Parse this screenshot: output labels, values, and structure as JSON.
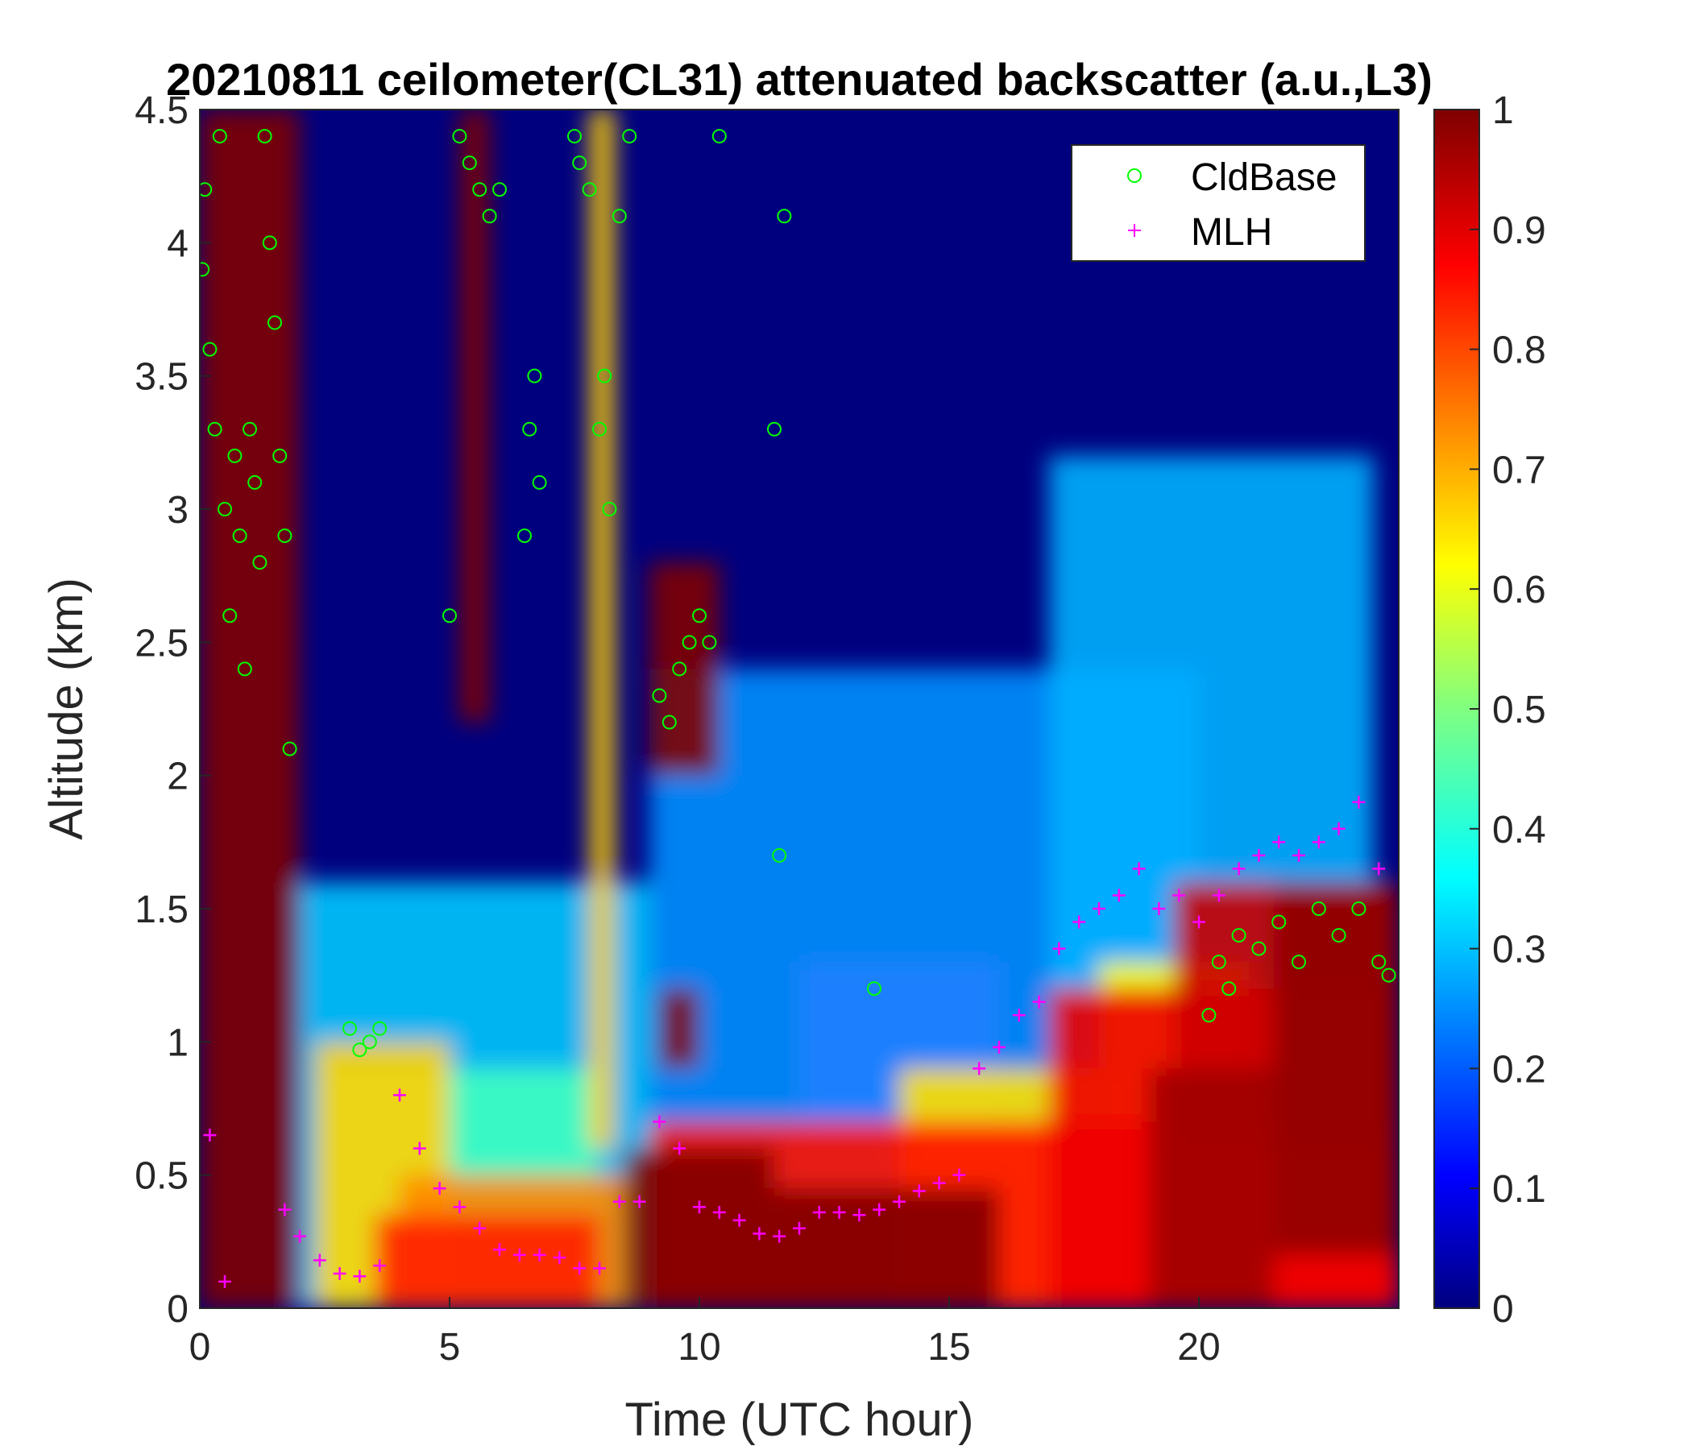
{
  "chart_data": {
    "type": "heatmap",
    "title": "20210811 ceilometer(CL31) attenuated backscatter (a.u.,L3)",
    "xlabel": "Time (UTC hour)",
    "ylabel": "Altitude (km)",
    "xlim": [
      0,
      24
    ],
    "ylim": [
      0,
      4.5
    ],
    "xticks": [
      "0",
      "5",
      "10",
      "15",
      "20"
    ],
    "yticks": [
      "0",
      "0.5",
      "1",
      "1.5",
      "2",
      "2.5",
      "3",
      "3.5",
      "4",
      "4.5"
    ],
    "colorbar": {
      "colormap": "jet",
      "range": [
        0,
        1
      ],
      "ticks": [
        "0",
        "0.1",
        "0.2",
        "0.3",
        "0.4",
        "0.5",
        "0.6",
        "0.7",
        "0.8",
        "0.9",
        "1"
      ]
    },
    "grid": false,
    "legend": {
      "placement": "top-right",
      "entries": [
        {
          "label": "CldBase",
          "marker": "circle",
          "color": "#00ff00"
        },
        {
          "label": "MLH",
          "marker": "plus",
          "color": "#ff00ff"
        }
      ]
    },
    "series": [
      {
        "name": "CldBase",
        "x": [
          0.05,
          0.1,
          0.2,
          0.3,
          0.4,
          0.5,
          0.6,
          0.7,
          0.8,
          0.9,
          1.0,
          1.1,
          1.2,
          1.3,
          1.4,
          1.5,
          1.6,
          1.7,
          1.8,
          3.0,
          3.2,
          3.4,
          3.6,
          5.0,
          5.2,
          5.4,
          5.6,
          5.8,
          6.0,
          6.5,
          6.6,
          6.7,
          6.8,
          7.5,
          7.6,
          7.8,
          8.0,
          8.1,
          8.2,
          8.4,
          8.6,
          9.2,
          9.4,
          9.6,
          9.8,
          10.0,
          10.2,
          10.4,
          11.5,
          11.6,
          11.7,
          13.5,
          20.2,
          20.4,
          20.6,
          20.8,
          21.2,
          21.6,
          22.0,
          22.4,
          22.8,
          23.2,
          23.6,
          23.8
        ],
        "y": [
          3.9,
          4.2,
          3.6,
          3.3,
          4.4,
          3.0,
          2.6,
          3.2,
          2.9,
          2.4,
          3.3,
          3.1,
          2.8,
          4.4,
          4.0,
          3.7,
          3.2,
          2.9,
          2.1,
          1.05,
          0.97,
          1.0,
          1.05,
          2.6,
          4.4,
          4.3,
          4.2,
          4.1,
          4.2,
          2.9,
          3.3,
          3.5,
          3.1,
          4.4,
          4.3,
          4.2,
          3.3,
          3.5,
          3.0,
          4.1,
          4.4,
          2.3,
          2.2,
          2.4,
          2.5,
          2.6,
          2.5,
          4.4,
          3.3,
          1.7,
          4.1,
          1.2,
          1.1,
          1.3,
          1.2,
          1.4,
          1.35,
          1.45,
          1.3,
          1.5,
          1.4,
          1.5,
          1.3,
          1.25
        ]
      },
      {
        "name": "MLH",
        "x": [
          0.2,
          0.5,
          1.7,
          2.0,
          2.4,
          2.8,
          3.2,
          3.6,
          4.0,
          4.4,
          4.8,
          5.2,
          5.6,
          6.0,
          6.4,
          6.8,
          7.2,
          7.6,
          8.0,
          8.4,
          8.8,
          9.2,
          9.6,
          10.0,
          10.4,
          10.8,
          11.2,
          11.6,
          12.0,
          12.4,
          12.8,
          13.2,
          13.6,
          14.0,
          14.4,
          14.8,
          15.2,
          15.6,
          16.0,
          16.4,
          16.8,
          17.2,
          17.6,
          18.0,
          18.4,
          18.8,
          19.2,
          19.6,
          20.0,
          20.4,
          20.8,
          21.2,
          21.6,
          22.0,
          22.4,
          22.8,
          23.2,
          23.6
        ],
        "y": [
          0.65,
          0.1,
          0.37,
          0.27,
          0.18,
          0.13,
          0.12,
          0.16,
          0.8,
          0.6,
          0.45,
          0.38,
          0.3,
          0.22,
          0.2,
          0.2,
          0.19,
          0.15,
          0.15,
          0.4,
          0.4,
          0.7,
          0.6,
          0.38,
          0.36,
          0.33,
          0.28,
          0.27,
          0.3,
          0.36,
          0.36,
          0.35,
          0.37,
          0.4,
          0.44,
          0.47,
          0.5,
          0.9,
          0.98,
          1.1,
          1.15,
          1.35,
          1.45,
          1.5,
          1.55,
          1.65,
          1.5,
          1.55,
          1.45,
          1.55,
          1.65,
          1.7,
          1.75,
          1.7,
          1.75,
          1.8,
          1.9,
          1.65
        ]
      }
    ]
  }
}
